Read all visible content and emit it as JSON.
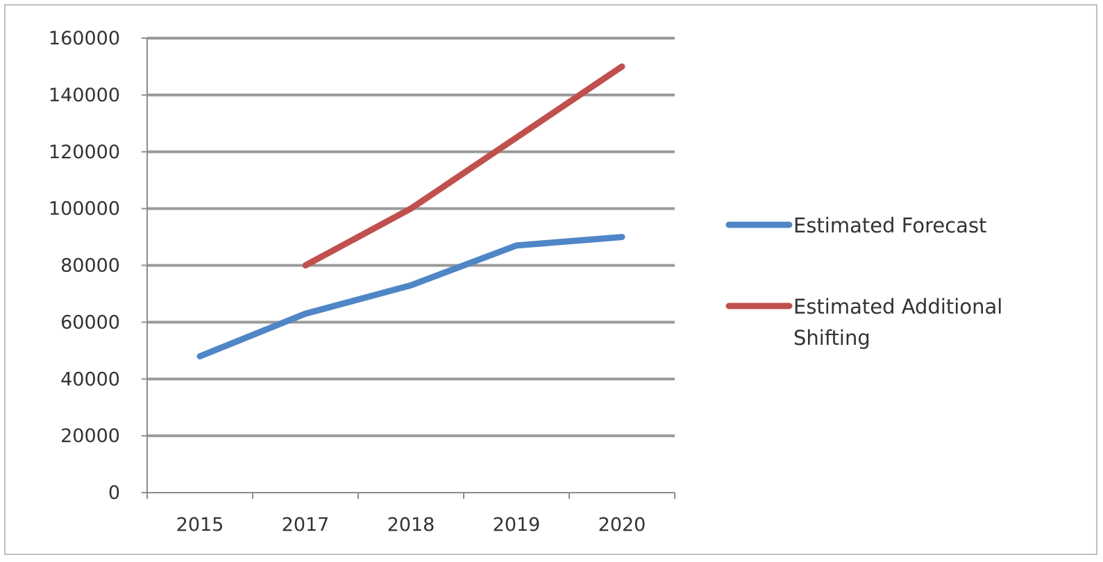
{
  "chart_data": {
    "type": "line",
    "categories": [
      "2015",
      "2017",
      "2018",
      "2019",
      "2020"
    ],
    "series": [
      {
        "name": "Estimated Forecast",
        "color": "#4f86c6",
        "values": [
          48000,
          63000,
          73000,
          87000,
          90000
        ]
      },
      {
        "name_lines": [
          "Estimated Additional",
          "Shifting"
        ],
        "name": "Estimated Additional Shifting",
        "color": "#c0504d",
        "values": [
          null,
          80000,
          100000,
          125000,
          150000
        ]
      }
    ],
    "ylim": [
      0,
      160000
    ],
    "yticks": [
      "0",
      "20000",
      "40000",
      "60000",
      "80000",
      "100000",
      "120000",
      "140000",
      "160000"
    ],
    "grid": true,
    "legend_position": "right"
  }
}
